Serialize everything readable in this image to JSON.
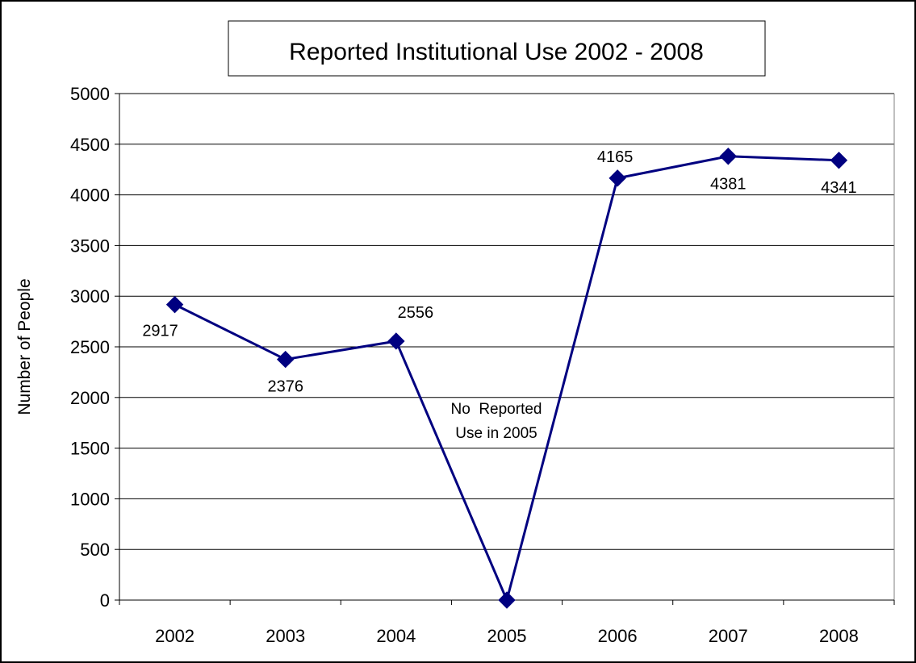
{
  "chart_data": {
    "type": "line",
    "title": "Reported Institutional Use 2002 - 2008",
    "xlabel": "",
    "ylabel": "Number of People",
    "categories": [
      "2002",
      "2003",
      "2004",
      "2005",
      "2006",
      "2007",
      "2008"
    ],
    "series": [
      {
        "values": [
          2917,
          2376,
          2556,
          0,
          4165,
          4381,
          4341
        ],
        "data_labels": [
          "2917",
          "2376",
          "2556",
          "",
          "4165",
          "4381",
          "4341"
        ],
        "color": "#000080"
      }
    ],
    "ylim": [
      0,
      5000
    ],
    "yticks": [
      0,
      500,
      1000,
      1500,
      2000,
      2500,
      3000,
      3500,
      4000,
      4500,
      5000
    ],
    "grid": true,
    "legend": "none",
    "marker": "diamond",
    "annotations": [
      {
        "lines": [
          "No  Reported",
          "Use in 2005"
        ],
        "category": "2005"
      }
    ]
  }
}
